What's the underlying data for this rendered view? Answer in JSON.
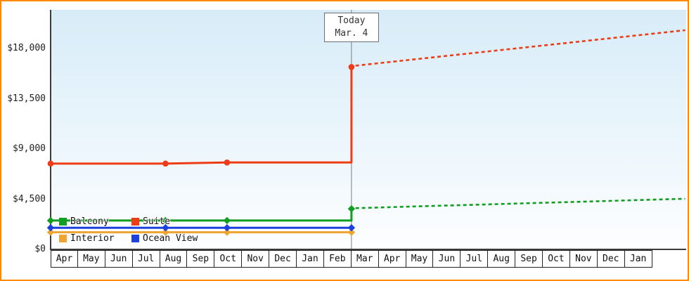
{
  "chart_data": {
    "type": "line",
    "title": "",
    "units": "USD",
    "y_axis": {
      "ticks": [
        {
          "value": 0,
          "label": "$0"
        },
        {
          "value": 4500,
          "label": "$4,500"
        },
        {
          "value": 9000,
          "label": "$9,000"
        },
        {
          "value": 13500,
          "label": "$13,500"
        },
        {
          "value": 18000,
          "label": "$18,000"
        }
      ],
      "max_value": 20600
    },
    "x_axis": {
      "months": [
        "Apr",
        "May",
        "Jun",
        "Jul",
        "Aug",
        "Sep",
        "Oct",
        "Nov",
        "Dec",
        "Jan",
        "Feb",
        "Mar",
        "Apr",
        "May",
        "Jun",
        "Jul",
        "Aug",
        "Sep",
        "Oct",
        "Nov",
        "Dec",
        "Jan"
      ]
    },
    "today": {
      "line1": "Today",
      "line2": "Mar. 4",
      "month_position": 11
    },
    "series": [
      {
        "name": "Interior",
        "color": "#eda431",
        "marker_shape": "diamond",
        "solid": [
          [
            0,
            1600
          ],
          [
            11,
            1600
          ]
        ],
        "dashed": [],
        "markers": [
          [
            0,
            1600
          ],
          [
            4.2,
            1600
          ],
          [
            6.45,
            1600
          ],
          [
            11,
            1600
          ]
        ]
      },
      {
        "name": "Ocean View",
        "color": "#1d41dd",
        "marker_shape": "diamond",
        "solid": [
          [
            0,
            2000
          ],
          [
            11,
            2000
          ]
        ],
        "dashed": [],
        "markers": [
          [
            0,
            2000
          ],
          [
            4.2,
            2000
          ],
          [
            6.45,
            2000
          ],
          [
            11,
            2000
          ]
        ]
      },
      {
        "name": "Balcony",
        "color": "#129e20",
        "marker_shape": "diamond",
        "solid": [
          [
            0,
            2650
          ],
          [
            11,
            2650
          ],
          [
            11,
            3700
          ]
        ],
        "dashed": [
          [
            11.15,
            3760
          ],
          [
            23.2,
            4600
          ]
        ],
        "markers": [
          [
            0,
            2650
          ],
          [
            4.2,
            2650
          ],
          [
            6.45,
            2650
          ],
          [
            11,
            3700
          ]
        ]
      },
      {
        "name": "Suite",
        "color": "#ee3d16",
        "marker_shape": "circle",
        "solid": [
          [
            0,
            7750
          ],
          [
            4.2,
            7750
          ],
          [
            6.45,
            7850
          ],
          [
            11,
            7850
          ],
          [
            11,
            16400
          ]
        ],
        "dashed": [
          [
            11.15,
            16520
          ],
          [
            23.2,
            19700
          ]
        ],
        "markers": [
          [
            0,
            7750
          ],
          [
            4.2,
            7750
          ],
          [
            6.45,
            7850
          ],
          [
            11,
            16400
          ]
        ]
      }
    ],
    "legend": [
      {
        "name": "Balcony",
        "color": "#129e20"
      },
      {
        "name": "Suite",
        "color": "#ee3d16"
      },
      {
        "name": "Interior",
        "color": "#eda431"
      },
      {
        "name": "Ocean View",
        "color": "#1d41dd"
      }
    ],
    "colors": {
      "frame_border": "#ff8a00",
      "plot_bg_top": "#d7ecf8",
      "plot_bg_bottom": "#fdfeff",
      "axis": "#3c3c3c",
      "today_line": "#7d7d7d"
    }
  }
}
